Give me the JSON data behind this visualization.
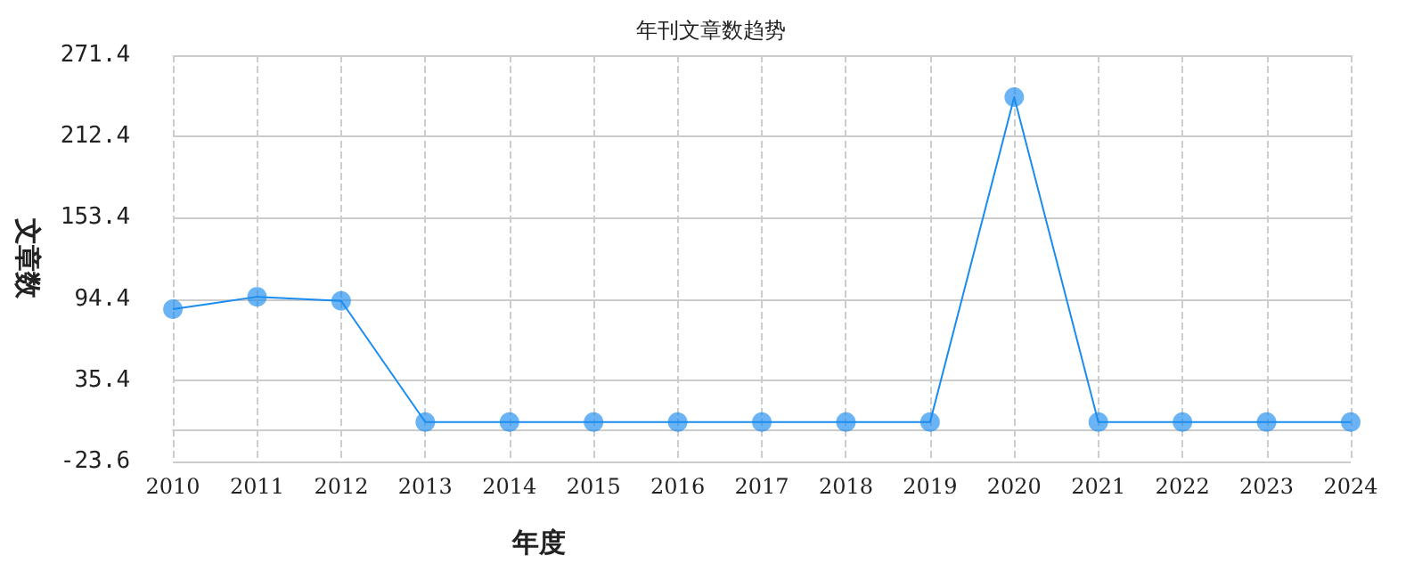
{
  "chart_data": {
    "type": "line",
    "title": "年刊文章数趋势",
    "xlabel": "年度",
    "ylabel": "文章数",
    "categories": [
      "2010",
      "2011",
      "2012",
      "2013",
      "2014",
      "2015",
      "2016",
      "2017",
      "2018",
      "2019",
      "2020",
      "2021",
      "2022",
      "2023",
      "2024"
    ],
    "series": [
      {
        "color": "#1a8cf0",
        "values": [
          87,
          96,
          93,
          5,
          5,
          5,
          5,
          5,
          5,
          5,
          241,
          5,
          5,
          5,
          5
        ]
      }
    ],
    "ylim": [
      -23.6,
      271.4
    ],
    "yticks": [
      -23.6,
      35.4,
      94.4,
      153.4,
      212.4,
      271.4
    ],
    "grid": true,
    "marker": "circle",
    "line_style": "solid"
  }
}
